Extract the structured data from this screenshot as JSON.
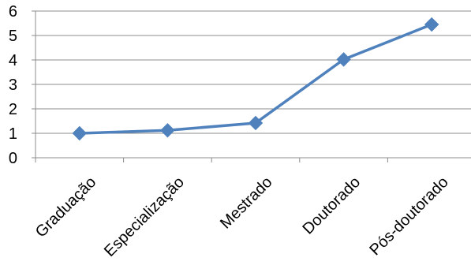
{
  "chart_data": {
    "type": "line",
    "title": "",
    "xlabel": "",
    "ylabel": "",
    "categories": [
      "Graduação",
      "Especialização",
      "Mestrado",
      "Doutorado",
      "Pós-doutorado"
    ],
    "series": [
      {
        "values": [
          1.0,
          1.12,
          1.42,
          4.02,
          5.45
        ],
        "color": "#4F81BD",
        "marker": "diamond"
      }
    ],
    "ylim": [
      0,
      6
    ],
    "yticks": [
      0,
      1,
      2,
      3,
      4,
      5,
      6
    ],
    "grid": true,
    "gridColor": "#8C8C8C",
    "legend": "none"
  }
}
